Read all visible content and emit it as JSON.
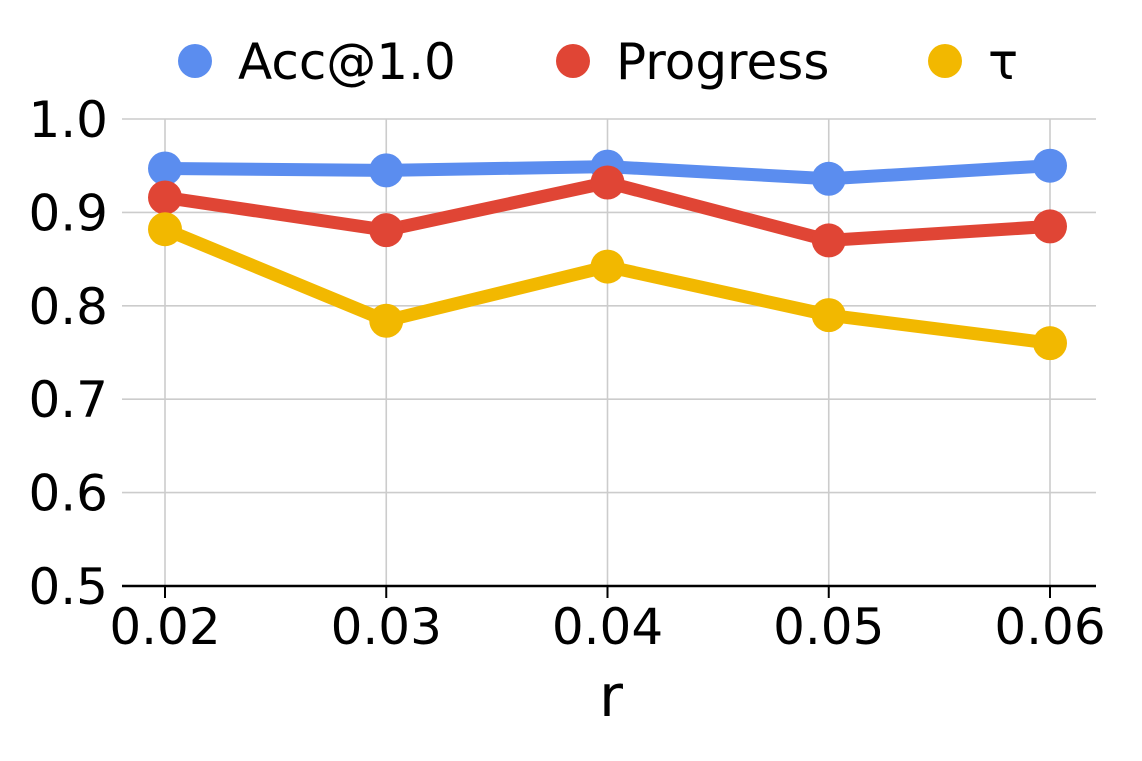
{
  "chart_data": {
    "type": "line",
    "xlabel": "r",
    "ylabel": "",
    "x": [
      0.02,
      0.03,
      0.04,
      0.05,
      0.06
    ],
    "x_tick_labels": [
      "0.02",
      "0.03",
      "0.04",
      "0.05",
      "0.06"
    ],
    "y_tick_labels": [
      "1.0",
      "0.9",
      "0.8",
      "0.7",
      "0.6",
      "0.5"
    ],
    "ylim": [
      0.5,
      1.0
    ],
    "grid": true,
    "legend_position": "top",
    "series": [
      {
        "name": "Acc@1.0",
        "color": "#5B8DEF",
        "values": [
          0.947,
          0.945,
          0.949,
          0.936,
          0.95
        ]
      },
      {
        "name": "Progress",
        "color": "#E04535",
        "values": [
          0.916,
          0.881,
          0.932,
          0.87,
          0.885
        ]
      },
      {
        "name": "τ",
        "color": "#F2B800",
        "values": [
          0.882,
          0.784,
          0.842,
          0.79,
          0.76
        ]
      }
    ]
  }
}
